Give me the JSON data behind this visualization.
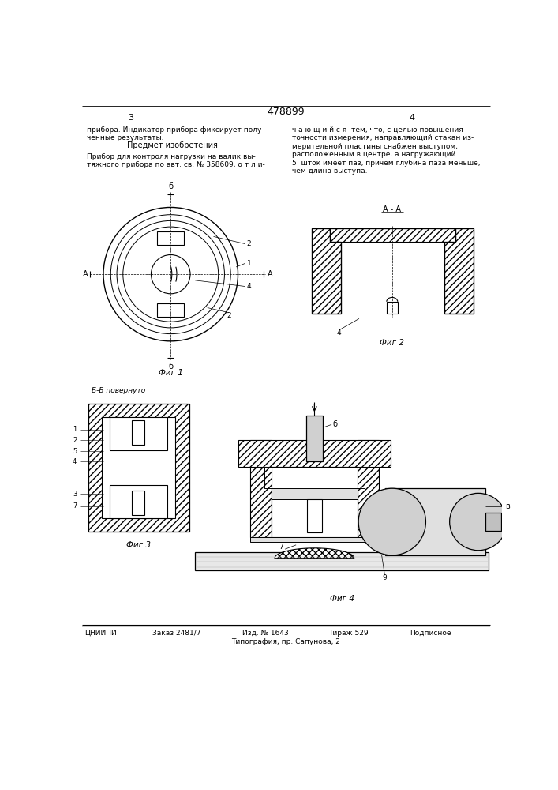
{
  "patent_number": "478899",
  "page_left": "3",
  "page_right": "4",
  "title_left": "прибора. Индикатор прибора фиксирует полу-\nченные результаты.",
  "subtitle_left": "Предмет изобретения",
  "body_left": "Прибор для контроля нагрузки на валик вы-\nтяжного прибора по авт. св. № 358609, о т л и-",
  "body_right": "ч а ю щ и й с я  тем, что, с целью повышения\nточности измерения, направляющий стакан из-\nмерительной пластины снабжен выступом,\nрасположенным в центре, а нагружающий\n5  шток имеет паз, причем глубина паза меньше,\nчем длина выступа.",
  "fig1_label": "Фиг 1",
  "fig2_label": "Фиг 2",
  "fig3_label": "Фиг 3",
  "fig4_label": "Фиг 4",
  "aa_label": "А - А",
  "bb_label": "Б-Б повернуто",
  "footer_col1": "ЦНИИПИ",
  "footer_col2": "Заказ 2481/7",
  "footer_col3": "Изд. № 1643",
  "footer_col4": "Тираж 529",
  "footer_col5": "Подписное",
  "footer_line2": "Типография, пр. Сапунова, 2",
  "bg_color": "#ffffff"
}
